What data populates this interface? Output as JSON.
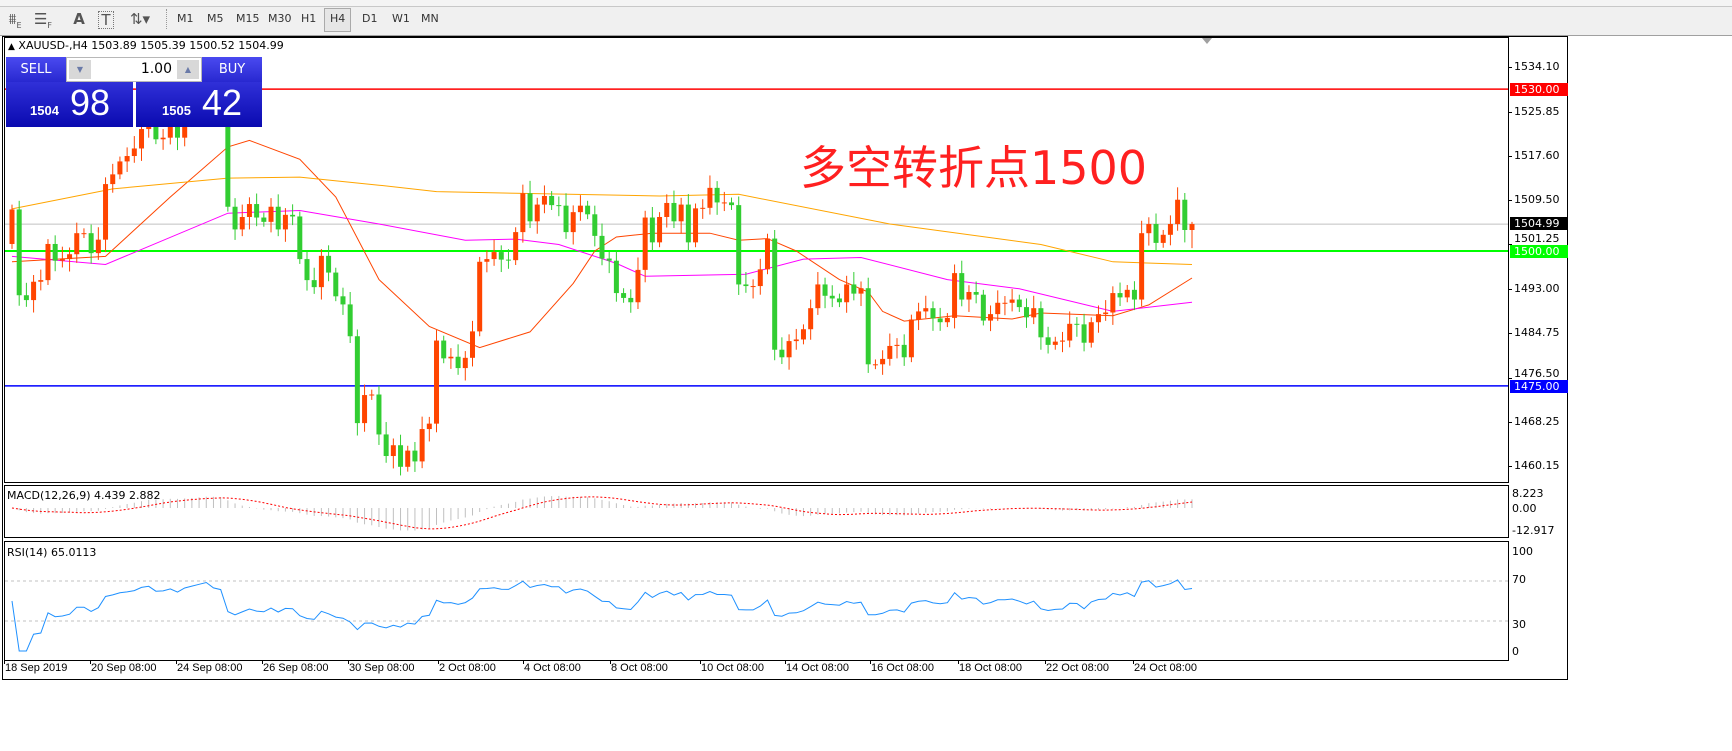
{
  "toolbar": {
    "icons": [
      "elliott-wave-icon",
      "fibonacci-icon",
      "text-icon",
      "text-label-icon",
      "arrows-icon"
    ],
    "icon_glyphs": {
      "elliott": "⩩",
      "elliott_sub": "E",
      "fibo": "☰",
      "fibo_sub": "F",
      "text": "A",
      "label": "T",
      "arrows": "⇅▾"
    },
    "timeframes": [
      "M1",
      "M5",
      "M15",
      "M30",
      "H1",
      "H4",
      "D1",
      "W1",
      "MN"
    ],
    "active_timeframe": "H4"
  },
  "chart": {
    "symbol_line": "XAUUSD-,H4  1503.89 1505.39 1500.52 1504.99",
    "symbol_marker": "▲",
    "annotation": "多空转折点1500"
  },
  "trade_panel": {
    "sell_label": "SELL",
    "buy_label": "BUY",
    "lot_value": "1.00",
    "dec_glyph": "▼",
    "inc_glyph": "▲",
    "sell_price_small": "1504",
    "sell_price_big": "98",
    "buy_price_small": "1505",
    "buy_price_big": "42"
  },
  "price_axis": {
    "ticks": [
      "1534.10",
      "1525.85",
      "1517.60",
      "1509.50",
      "1501.25",
      "1493.00",
      "1484.75",
      "1476.50",
      "1468.25",
      "1460.15"
    ],
    "levels": [
      {
        "label": "1530.00",
        "price": 1530.0,
        "color": "#ff0000"
      },
      {
        "label": "1500.00",
        "price": 1500.0,
        "color": "#00ff00"
      },
      {
        "label": "1475.00",
        "price": 1475.0,
        "color": "#0000ff"
      }
    ],
    "current": {
      "label": "1504.99",
      "price": 1504.99,
      "color": "#000000",
      "line_color": "#c0c0c0"
    }
  },
  "macd": {
    "label": "MACD(12,26,9) 4.439 2.882",
    "axis": [
      "8.223",
      "0.00",
      "-12.917"
    ],
    "hist_color": "#c0c0c0",
    "signal_color": "#ff0000"
  },
  "rsi": {
    "label": "RSI(14) 65.0113",
    "axis": [
      "100",
      "70",
      "30",
      "0"
    ],
    "line_color": "#1e90ff"
  },
  "time_axis": [
    "18 Sep 2019",
    "20 Sep 08:00",
    "24 Sep 08:00",
    "26 Sep 08:00",
    "30 Sep 08:00",
    "2 Oct 08:00",
    "4 Oct 08:00",
    "8 Oct 08:00",
    "10 Oct 08:00",
    "14 Oct 08:00",
    "16 Oct 08:00",
    "18 Oct 08:00",
    "22 Oct 08:00",
    "24 Oct 08:00"
  ],
  "chart_data": {
    "type": "candlestick",
    "symbol": "XAUUSD-",
    "timeframe": "H4",
    "ylim": [
      1460.15,
      1534.1
    ],
    "up_color": "#ff4500",
    "down_color": "#32cd32",
    "first_open": 1501.3,
    "last_bar": {
      "open": 1503.89,
      "high": 1505.39,
      "low": 1500.52,
      "close": 1504.99
    },
    "closes": [
      1507.7,
      1491.8,
      1490.9,
      1494.3,
      1494.6,
      1501.3,
      1498.2,
      1498.5,
      1499.4,
      1503.3,
      1503.3,
      1499.6,
      1502.1,
      1512.4,
      1514.2,
      1516.6,
      1517.6,
      1519,
      1522.6,
      1524,
      1520.7,
      1521,
      1523,
      1521,
      1525,
      1527,
      1529,
      1531,
      1528,
      1527,
      1508.2,
      1504,
      1506.3,
      1508.7,
      1506.2,
      1505.4,
      1508.2,
      1504,
      1506.7,
      1506.4,
      1498.5,
      1494.6,
      1493.3,
      1499.1,
      1496,
      1491.6,
      1490.1,
      1484.2,
      1468.1,
      1473.3,
      1473.4,
      1466,
      1462,
      1464,
      1460,
      1463,
      1461,
      1467,
      1468,
      1483.4,
      1480.1,
      1480.4,
      1478.3,
      1480.2,
      1485.1,
      1498,
      1498.5,
      1499.8,
      1498.4,
      1498.3,
      1503.5,
      1510.7,
      1505.5,
      1508.6,
      1510.2,
      1508.5,
      1508.4,
      1503.5,
      1507.2,
      1508.4,
      1506.8,
      1502.8,
      1498.6,
      1498.2,
      1492.2,
      1491.3,
      1490.5,
      1496.5,
      1506.2,
      1501.6,
      1506.3,
      1508.9,
      1505.5,
      1508.6,
      1501.6,
      1507.9,
      1508,
      1511.7,
      1509,
      1509,
      1508.5,
      1493.8,
      1493.5,
      1493.5,
      1496.6,
      1502.3,
      1481.7,
      1480.3,
      1483.3,
      1483.6,
      1485.5,
      1489.4,
      1493.8,
      1491.7,
      1491.2,
      1490.5,
      1493.8,
      1492.1,
      1493.1,
      1479,
      1479,
      1480,
      1482.4,
      1482.6,
      1480.3,
      1487.3,
      1488.8,
      1489.4,
      1487.5,
      1486.8,
      1487.6,
      1495.9,
      1491,
      1492.4,
      1491.9,
      1487.1,
      1488.3,
      1490.4,
      1490.4,
      1491,
      1489.6,
      1487.7,
      1489.4,
      1484,
      1482.6,
      1483.2,
      1483.4,
      1486.5,
      1486.4,
      1483,
      1486.8,
      1488.3,
      1488.6,
      1492.2,
      1491.4,
      1492.8,
      1491,
      1503.3,
      1505,
      1501.5,
      1503,
      1505,
      1509.5,
      1503.89,
      1504.99
    ],
    "moving_averages": [
      {
        "color": "#ff4500",
        "points": [
          [
            0,
            1498
          ],
          [
            13,
            1499
          ],
          [
            22,
            1510
          ],
          [
            30,
            1519.3
          ],
          [
            33,
            1520.5
          ],
          [
            40,
            1517
          ],
          [
            45,
            1510
          ],
          [
            51,
            1494.7
          ],
          [
            58,
            1486
          ],
          [
            65,
            1482.1
          ],
          [
            72,
            1485
          ],
          [
            78,
            1494
          ],
          [
            81,
            1500
          ],
          [
            84,
            1502.6
          ],
          [
            89,
            1503.3
          ],
          [
            97,
            1503.3
          ],
          [
            101,
            1502
          ],
          [
            105,
            1502.3
          ],
          [
            109,
            1500
          ],
          [
            115,
            1494.7
          ],
          [
            119,
            1492.4
          ],
          [
            121,
            1488.8
          ],
          [
            124,
            1487
          ],
          [
            131,
            1488
          ],
          [
            139,
            1487.4
          ],
          [
            143,
            1488.5
          ],
          [
            153,
            1488
          ],
          [
            158,
            1490
          ],
          [
            164,
            1495
          ]
        ]
      },
      {
        "color": "#ff00ff",
        "points": [
          [
            0,
            1499
          ],
          [
            13,
            1497.5
          ],
          [
            30,
            1507
          ],
          [
            40,
            1507.5
          ],
          [
            51,
            1505
          ],
          [
            63,
            1502
          ],
          [
            70,
            1502.2
          ],
          [
            76,
            1501.2
          ],
          [
            84,
            1497.7
          ],
          [
            88,
            1495.3
          ],
          [
            102,
            1495.7
          ],
          [
            110,
            1498.5
          ],
          [
            118,
            1498.8
          ],
          [
            130,
            1494.7
          ],
          [
            140,
            1493
          ],
          [
            153,
            1488.8
          ],
          [
            164,
            1490.5
          ]
        ]
      },
      {
        "color": "#ffa500",
        "points": [
          [
            0,
            1507.8
          ],
          [
            14,
            1511.5
          ],
          [
            30,
            1513.5
          ],
          [
            40,
            1513.7
          ],
          [
            51,
            1512.2
          ],
          [
            59,
            1511
          ],
          [
            70,
            1510.7
          ],
          [
            90,
            1510.2
          ],
          [
            101,
            1510.5
          ],
          [
            122,
            1505
          ],
          [
            143,
            1501.2
          ],
          [
            153,
            1498
          ],
          [
            164,
            1497.5
          ]
        ]
      }
    ],
    "macd_params": [
      12,
      26,
      9
    ],
    "macd_ylim": [
      -12.917,
      8.223
    ],
    "rsi_period": 14,
    "rsi_levels": [
      30,
      70
    ],
    "rsi_ylim": [
      0,
      100
    ]
  }
}
